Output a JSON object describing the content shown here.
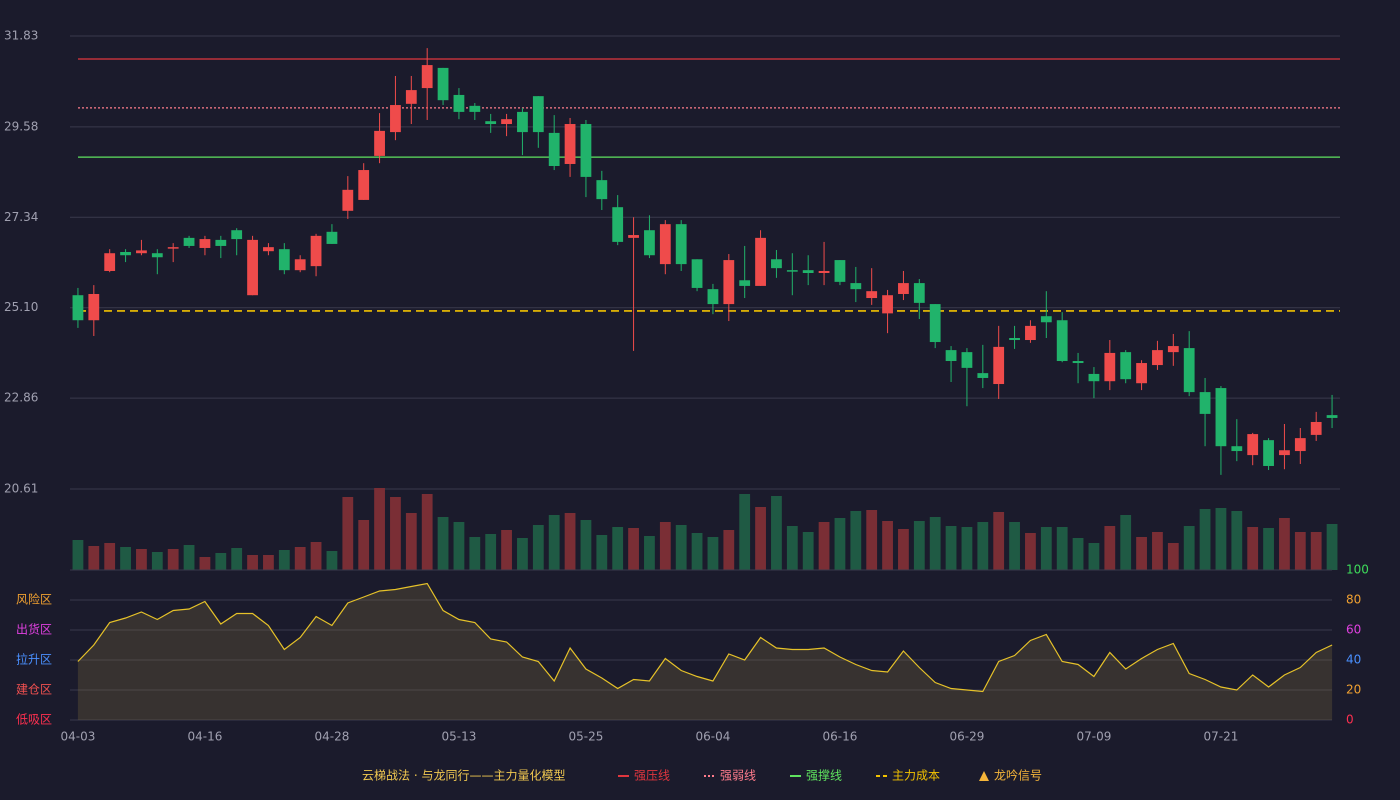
{
  "chart_data": [
    {
      "type": "candlestick",
      "categories": [
        "04-03",
        null,
        null,
        null,
        null,
        null,
        null,
        null,
        "04-16",
        null,
        null,
        null,
        null,
        null,
        null,
        null,
        "04-28",
        null,
        null,
        null,
        null,
        null,
        null,
        null,
        "05-13",
        null,
        null,
        null,
        null,
        null,
        null,
        null,
        "05-25",
        null,
        null,
        null,
        null,
        null,
        null,
        null,
        "06-04",
        null,
        null,
        null,
        null,
        null,
        null,
        null,
        "06-16",
        null,
        null,
        null,
        null,
        null,
        null,
        null,
        "06-29",
        null,
        null,
        null,
        null,
        null,
        null,
        null,
        "07-09",
        null,
        null,
        null,
        null,
        null,
        null,
        null,
        "07-21",
        null,
        null,
        null,
        null,
        null,
        null,
        null
      ],
      "open": [
        25.41,
        24.79,
        26.01,
        26.48,
        26.45,
        26.45,
        26.58,
        26.83,
        26.58,
        26.78,
        27.02,
        25.41,
        26.5,
        26.55,
        26.03,
        26.13,
        26.98,
        27.5,
        27.77,
        28.86,
        29.45,
        30.15,
        30.54,
        31.04,
        30.37,
        30.1,
        29.72,
        29.65,
        29.95,
        30.34,
        29.43,
        28.66,
        29.65,
        28.26,
        27.59,
        26.83,
        27.02,
        26.18,
        27.17,
        26.3,
        25.56,
        25.19,
        25.78,
        25.64,
        26.3,
        26.03,
        26.03,
        25.96,
        26.28,
        25.71,
        25.34,
        24.96,
        25.44,
        25.71,
        25.19,
        24.05,
        24.0,
        23.48,
        23.21,
        24.35,
        24.3,
        24.89,
        24.79,
        23.78,
        23.46,
        23.28,
        24.0,
        23.23,
        23.68,
        24.0,
        24.1,
        23.01,
        23.11,
        21.67,
        21.45,
        21.82,
        21.45,
        21.55,
        21.95,
        22.44
      ],
      "high": [
        25.59,
        25.66,
        26.55,
        26.55,
        26.78,
        26.55,
        26.7,
        26.88,
        26.88,
        26.88,
        27.07,
        26.88,
        26.7,
        26.7,
        26.4,
        26.93,
        27.17,
        28.36,
        28.68,
        29.92,
        30.84,
        30.84,
        31.53,
        31.04,
        30.54,
        30.17,
        29.9,
        29.9,
        30.05,
        30.34,
        29.87,
        29.8,
        29.75,
        28.49,
        27.89,
        27.34,
        27.39,
        27.27,
        27.27,
        26.3,
        25.69,
        26.43,
        26.63,
        27.02,
        26.53,
        26.45,
        26.4,
        26.73,
        26.28,
        26.11,
        26.08,
        25.54,
        26.01,
        25.81,
        25.19,
        24.15,
        24.1,
        24.18,
        24.65,
        24.65,
        24.79,
        25.51,
        24.99,
        23.98,
        23.63,
        24.3,
        24.05,
        23.8,
        24.28,
        24.45,
        24.52,
        23.36,
        23.16,
        22.34,
        22.0,
        21.87,
        22.22,
        22.12,
        22.52,
        22.94
      ],
      "low": [
        24.6,
        24.4,
        25.98,
        26.23,
        26.4,
        25.93,
        26.23,
        26.58,
        26.4,
        26.33,
        26.4,
        25.41,
        26.4,
        25.93,
        25.98,
        25.88,
        26.68,
        27.3,
        27.77,
        28.68,
        29.25,
        29.65,
        29.75,
        30.12,
        29.77,
        29.75,
        29.43,
        29.35,
        28.88,
        29.06,
        28.51,
        28.34,
        27.84,
        27.52,
        26.65,
        24.03,
        26.33,
        25.93,
        26.01,
        25.51,
        24.94,
        24.77,
        25.34,
        25.64,
        25.84,
        25.41,
        25.66,
        25.66,
        25.66,
        25.24,
        25.17,
        24.47,
        25.29,
        24.82,
        24.1,
        23.26,
        22.66,
        23.11,
        22.84,
        24.08,
        24.23,
        24.35,
        23.75,
        23.23,
        22.86,
        23.06,
        23.23,
        23.06,
        23.56,
        23.66,
        22.91,
        21.67,
        20.96,
        21.3,
        21.2,
        21.08,
        21.1,
        21.23,
        21.8,
        22.12
      ],
      "close": [
        24.79,
        25.44,
        26.45,
        26.4,
        26.52,
        26.35,
        26.6,
        26.63,
        26.8,
        26.63,
        26.8,
        26.78,
        26.6,
        26.03,
        26.3,
        26.88,
        26.68,
        28.02,
        28.51,
        29.48,
        30.12,
        30.49,
        31.11,
        30.24,
        29.95,
        29.95,
        29.65,
        29.77,
        29.45,
        29.45,
        28.61,
        29.65,
        28.34,
        27.79,
        26.73,
        26.9,
        26.4,
        27.17,
        26.18,
        25.59,
        25.19,
        26.28,
        25.64,
        26.83,
        26.08,
        26.01,
        25.96,
        26.01,
        25.74,
        25.56,
        25.51,
        25.41,
        25.71,
        25.22,
        24.25,
        23.78,
        23.61,
        23.36,
        24.13,
        24.3,
        24.65,
        24.74,
        23.78,
        23.73,
        23.28,
        23.98,
        23.33,
        23.73,
        24.05,
        24.15,
        23.01,
        22.47,
        21.67,
        21.55,
        21.97,
        21.18,
        21.57,
        21.87,
        22.27,
        22.37
      ],
      "up_color": "#ef4b4b",
      "down_color": "#21b36b",
      "ylim": [
        20.61,
        31.83
      ],
      "yticks": [
        31.83,
        29.58,
        27.34,
        {
          "value": 25.1,
          "label": "25.10"
        },
        22.86,
        20.61
      ],
      "lines": [
        {
          "name": "强压线",
          "value": 31.26,
          "color": "#e0363e",
          "style": "solid"
        },
        {
          "name": "强弱线",
          "value": 30.05,
          "color": "#ff7c8c",
          "style": "dotted"
        },
        {
          "name": "强撑线",
          "value": 28.83,
          "color": "#5fe35f",
          "style": "solid"
        },
        {
          "name": "主力成本",
          "value": 25.02,
          "color": "#f2c200",
          "style": "dashed"
        }
      ],
      "legend_title": "云梯战法 · 与龙同行——主力量化模型",
      "legend_title_color": "#f0c850",
      "signal": {
        "name": "龙吟信号",
        "color": "#f5b53a"
      }
    },
    {
      "type": "bar",
      "values": [
        30,
        24,
        27,
        23,
        21,
        18,
        21,
        25,
        13,
        17,
        22,
        15,
        15,
        20,
        23,
        28,
        19,
        73,
        50,
        82,
        73,
        57,
        76,
        53,
        48,
        33,
        36,
        40,
        32,
        45,
        55,
        57,
        50,
        35,
        43,
        42,
        34,
        48,
        45,
        37,
        33,
        40,
        76,
        63,
        74,
        44,
        38,
        48,
        52,
        59,
        60,
        49,
        41,
        49,
        53,
        44,
        43,
        48,
        58,
        48,
        37,
        43,
        43,
        32,
        27,
        44,
        55,
        33,
        38,
        27,
        44,
        61,
        62,
        59,
        43,
        42,
        52,
        38,
        38,
        46
      ],
      "up_color": "#7a2e35",
      "down_color": "#1f5a44"
    },
    {
      "type": "line",
      "values": [
        39,
        50,
        65,
        68,
        72,
        67,
        73,
        74,
        79,
        64,
        71,
        71,
        63,
        47,
        55,
        69,
        63,
        78,
        82,
        86,
        87,
        89,
        91,
        73,
        67,
        65,
        54,
        52,
        42,
        39,
        26,
        48,
        34,
        28,
        21,
        27,
        26,
        41,
        33,
        29,
        26,
        44,
        40,
        55,
        48,
        47,
        47,
        48,
        42,
        37,
        33,
        32,
        46,
        35,
        25,
        21,
        20,
        19,
        39,
        43,
        53,
        57,
        39,
        37,
        29,
        45,
        34,
        41,
        47,
        51,
        31,
        27,
        22,
        20,
        30,
        22,
        30,
        35,
        45,
        50
      ],
      "color": "#e6c229",
      "ylim": [
        0,
        100
      ],
      "yticks": [
        100,
        80,
        60,
        40,
        20,
        0
      ],
      "tick_colors": [
        "#3ddc5a",
        "#f0a030",
        "#e040e0",
        "#4a90ff",
        "#f0a030",
        "#ff3050"
      ],
      "zones": [
        {
          "label": "风险区",
          "value": 80,
          "color": "#f0a030"
        },
        {
          "label": "出货区",
          "value": 60,
          "color": "#e040e0"
        },
        {
          "label": "拉升区",
          "value": 40,
          "color": "#4a90ff"
        },
        {
          "label": "建仓区",
          "value": 20,
          "color": "#f05050"
        },
        {
          "label": "低吸区",
          "value": 0,
          "color": "#ff3050"
        }
      ]
    }
  ]
}
